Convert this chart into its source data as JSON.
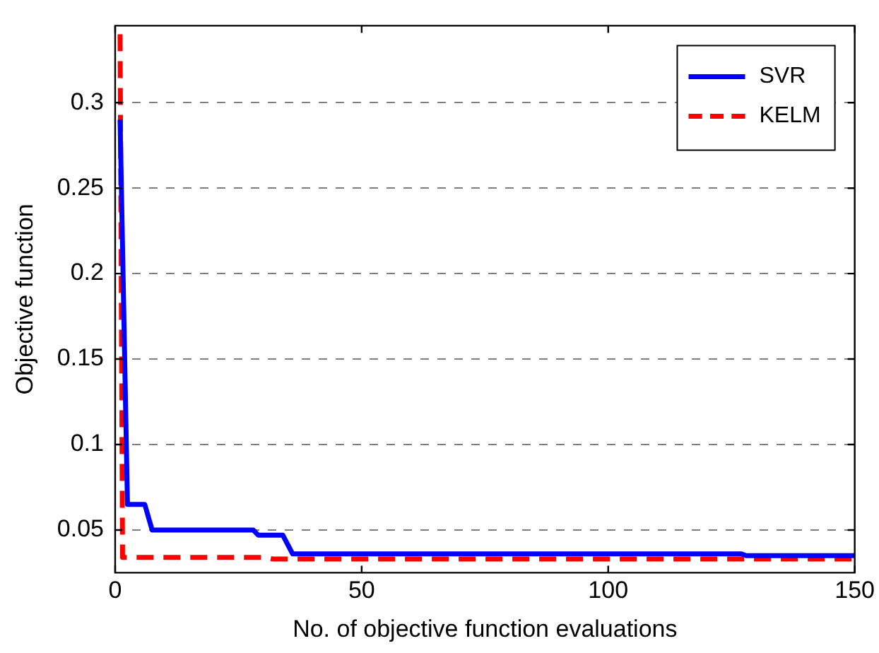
{
  "chart_data": {
    "type": "line",
    "xlabel": "No. of objective function evaluations",
    "ylabel": "Objective function",
    "xlim": [
      0,
      150
    ],
    "xticks": [
      0,
      50,
      100,
      150
    ],
    "ylim": [
      0.025,
      0.345
    ],
    "yticks": [
      0.05,
      0.1,
      0.15,
      0.2,
      0.25,
      0.3
    ],
    "grid": "y",
    "legend": "top right",
    "marker": "none",
    "series": [
      {
        "name": "SVR",
        "color": "#0000ff",
        "line_style": "solid",
        "x": [
          1,
          2.5,
          6,
          7.5,
          28,
          29,
          34,
          36,
          127,
          128,
          150
        ],
        "values": [
          0.29,
          0.065,
          0.065,
          0.05,
          0.05,
          0.047,
          0.047,
          0.036,
          0.036,
          0.035,
          0.035
        ]
      },
      {
        "name": "KELM",
        "color": "#ff0000",
        "line_style": "dashed",
        "x": [
          1,
          1.5,
          30,
          32,
          150
        ],
        "values": [
          0.34,
          0.034,
          0.034,
          0.033,
          0.033
        ]
      }
    ]
  }
}
